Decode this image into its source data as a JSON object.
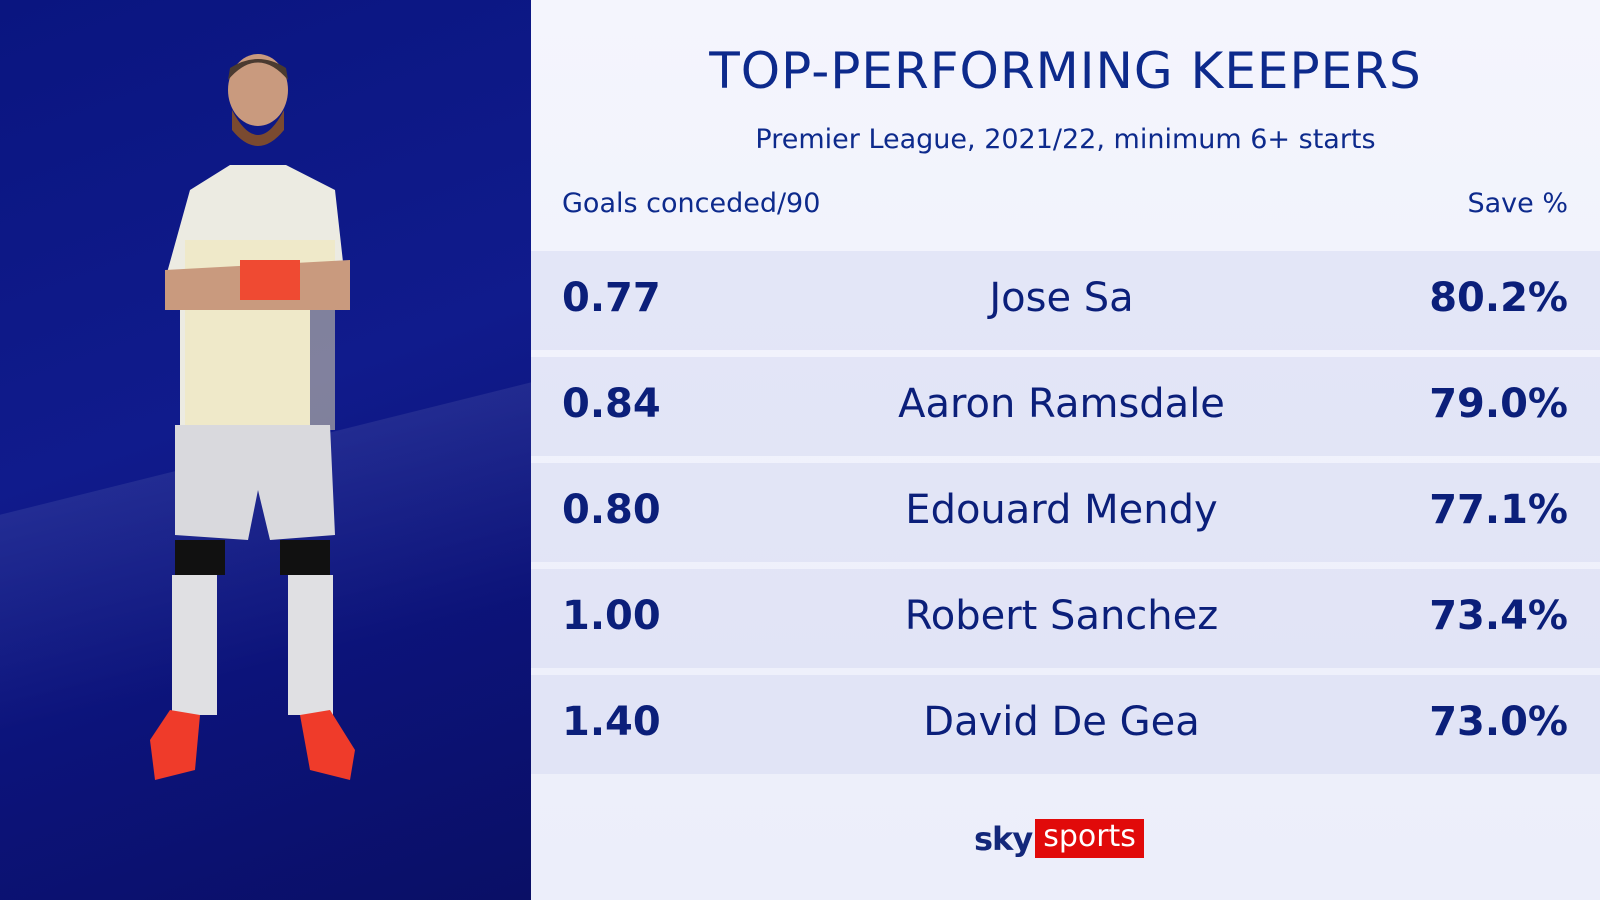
{
  "title": "TOP-PERFORMING KEEPERS",
  "subtitle": "Premier League, 2021/22, minimum 6+ starts",
  "columns": {
    "left": "Goals conceded/90",
    "right": "Save %"
  },
  "rows": [
    {
      "goals_conceded_per_90": "0.77",
      "name": "Jose Sa",
      "save_pct": "80.2%"
    },
    {
      "goals_conceded_per_90": "0.84",
      "name": "Aaron Ramsdale",
      "save_pct": "79.0%"
    },
    {
      "goals_conceded_per_90": "0.80",
      "name": "Edouard Mendy",
      "save_pct": "77.1%"
    },
    {
      "goals_conceded_per_90": "1.00",
      "name": "Robert Sanchez",
      "save_pct": "73.4%"
    },
    {
      "goals_conceded_per_90": "1.40",
      "name": "David De Gea",
      "save_pct": "73.0%"
    }
  ],
  "logo": {
    "part1": "sky",
    "part2": "sports"
  },
  "colors": {
    "panel": "#0a1580",
    "text": "#0d2a8c",
    "brand_red": "#e10a0a"
  }
}
